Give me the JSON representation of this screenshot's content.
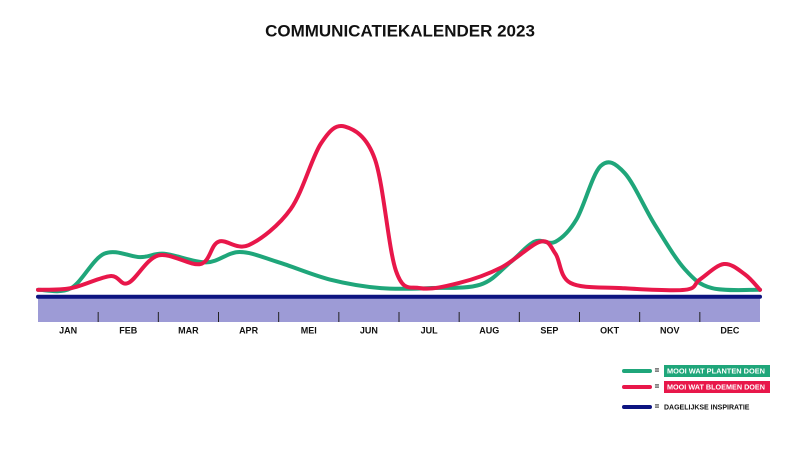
{
  "chart_data": {
    "type": "line",
    "title": "COMMUNICATIEKALENDER 2023",
    "xlim": [
      0,
      12
    ],
    "xticks": [
      {
        "value": 0.5,
        "label": "JAN"
      },
      {
        "value": 1.5,
        "label": "FEB"
      },
      {
        "value": 2.5,
        "label": "MAR"
      },
      {
        "value": 3.5,
        "label": "APR"
      },
      {
        "value": 4.5,
        "label": "MEI"
      },
      {
        "value": 5.5,
        "label": "JUN"
      },
      {
        "value": 6.5,
        "label": "JUL"
      },
      {
        "value": 7.5,
        "label": "AUG"
      },
      {
        "value": 8.5,
        "label": "SEP"
      },
      {
        "value": 9.5,
        "label": "OKT"
      },
      {
        "value": 10.5,
        "label": "NOV"
      },
      {
        "value": 11.5,
        "label": "DEC"
      }
    ],
    "ylim": [
      -10,
      100
    ],
    "legend_marker": "=",
    "series": [
      {
        "name": "MOOI WAT PLANTEN DOEN",
        "color": "#1fa67a",
        "x": [
          0,
          0.55,
          1.1,
          1.7,
          2.1,
          2.8,
          3.35,
          4.0,
          4.85,
          5.7,
          6.5,
          7.35,
          7.85,
          8.25,
          8.6,
          8.95,
          9.35,
          9.75,
          10.25,
          10.75,
          11.2,
          12
        ],
        "values": [
          0,
          1,
          21,
          19,
          21,
          16,
          22,
          16,
          6,
          1,
          1,
          3,
          16,
          28,
          28,
          41,
          72,
          68,
          38,
          12,
          1,
          0
        ]
      },
      {
        "name": "MOOI WAT BLOEMEN DOEN",
        "color": "#e8174a",
        "x": [
          0,
          0.55,
          1.2,
          1.5,
          2.0,
          2.7,
          3.0,
          3.5,
          4.2,
          4.7,
          5.1,
          5.6,
          5.95,
          6.35,
          7.0,
          7.7,
          8.35,
          8.6,
          8.85,
          9.7,
          10.75,
          11.0,
          11.4,
          11.75,
          12
        ],
        "values": [
          0,
          1,
          8,
          4,
          20,
          15,
          28,
          26,
          47,
          85,
          95,
          76,
          11,
          1,
          4,
          13,
          28,
          21,
          4,
          1,
          0,
          6,
          15,
          9,
          0
        ]
      },
      {
        "name": "DAGELIJKSE INSPIRATIE",
        "color": "#0d1480",
        "x": [
          0,
          12
        ],
        "values": [
          -4,
          -4
        ]
      }
    ]
  }
}
